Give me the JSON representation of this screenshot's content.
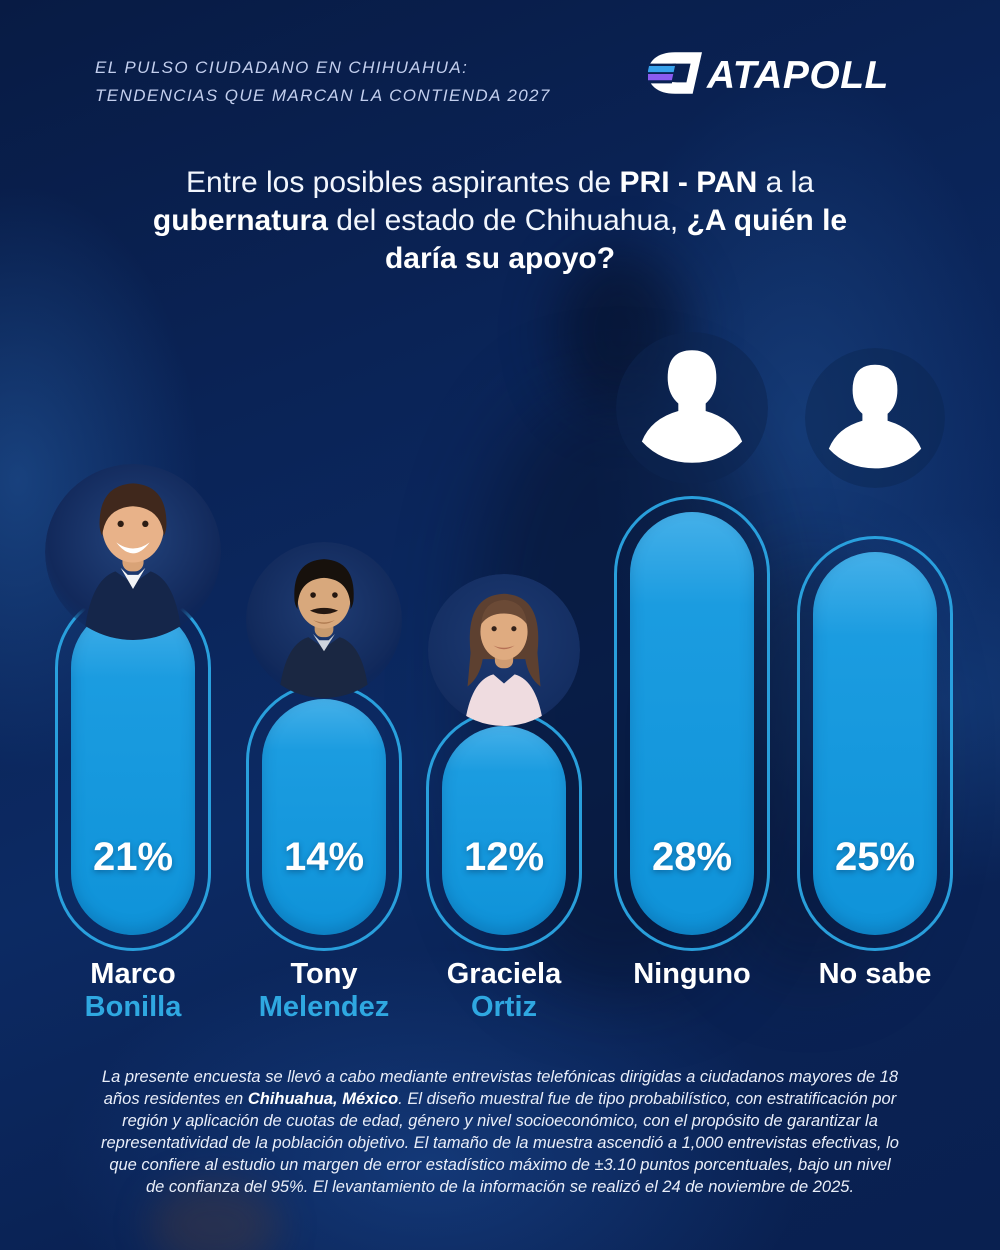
{
  "header": {
    "tagline_line1": "EL PULSO CIUDADANO EN CHIHUAHUA:",
    "tagline_line2": "TENDENCIAS QUE MARCAN LA CONTIENDA 2027",
    "brand": "ATAPOLL",
    "brand_full": "DATAPOLL",
    "brand_mark": "striped-reversed-d-logo",
    "brand_mark_colors": {
      "stripe_blue": "#37a2ec",
      "stripe_purple": "#8a5cf0",
      "glyph": "#ffffff"
    }
  },
  "question": {
    "part1": "Entre los posibles aspirantes de ",
    "part2_bold": "PRI - PAN",
    "part3": " a la ",
    "part4_bold": "gubernatura",
    "part5": " del estado de Chihuahua, ",
    "part6_bold": "¿A quién le daría su apoyo?"
  },
  "chart_data": {
    "type": "bar",
    "title": "Entre los posibles aspirantes de PRI - PAN a la gubernatura del estado de Chihuahua, ¿A quién le daría su apoyo?",
    "categories": [
      "Marco Bonilla",
      "Tony Melendez",
      "Graciela Ortiz",
      "Ninguno",
      "No sabe"
    ],
    "values": [
      21,
      14,
      12,
      28,
      25
    ],
    "unit": "%",
    "ylim": [
      0,
      30
    ],
    "grid": false,
    "legend": "none",
    "bar_color": "#1496DB",
    "outline_color": "#2BA6E4",
    "value_label_color": "#FFFFFF",
    "candidates": [
      {
        "first": "Marco",
        "last": "Bonilla",
        "value": 21,
        "pct": "21%",
        "avatar": "photo-man-smiling"
      },
      {
        "first": "Tony",
        "last": "Melendez",
        "value": 14,
        "pct": "14%",
        "avatar": "photo-man-mustache"
      },
      {
        "first": "Graciela",
        "last": "Ortiz",
        "value": 12,
        "pct": "12%",
        "avatar": "photo-woman"
      },
      {
        "first": "Ninguno",
        "last": "",
        "value": 28,
        "pct": "28%",
        "avatar": "silhouette"
      },
      {
        "first": "No sabe",
        "last": "",
        "value": 25,
        "pct": "25%",
        "avatar": "silhouette"
      }
    ]
  },
  "footer": {
    "part1": "La presente encuesta se llevó a cabo mediante entrevistas telefónicas dirigidas a ciudadanos mayores de 18 años residentes en ",
    "part2_bold": "Chihuahua, México",
    "part3": ". El diseño muestral fue de tipo probabilístico, con estratificación por región y aplicación de cuotas de edad, género y nivel socioeconómico, con el propósito de garantizar la representatividad de la población objetivo. El tamaño de la muestra ascendió a 1,000 entrevistas efectivas, lo que confiere al estudio un margen de error estadístico máximo de ±3.10 puntos porcentuales, bajo un nivel de confianza del 95%. El levantamiento de la información se realizó el 24 de noviembre de 2025."
  },
  "colors": {
    "background_navy": "#0A2254",
    "bar_blue": "#1496DB",
    "accent_blue": "#2FA8E1",
    "tagline_blue": "#C3CFEE"
  }
}
